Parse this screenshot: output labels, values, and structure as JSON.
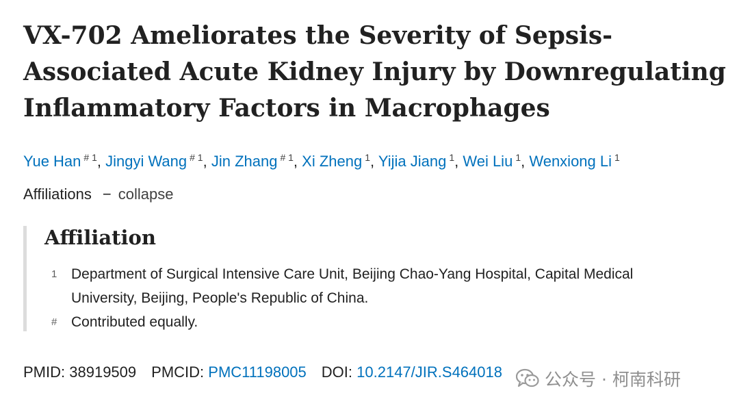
{
  "article": {
    "title_line1": "VX-702 Ameliorates the Severity of Sepsis-",
    "title_line2": "Associated Acute Kidney Injury by Downregulating",
    "title_line3": "Inflammatory Factors in Macrophages"
  },
  "authors": [
    {
      "name": "Yue Han",
      "marks": "# 1"
    },
    {
      "name": "Jingyi Wang",
      "marks": "# 1"
    },
    {
      "name": "Jin Zhang",
      "marks": "# 1"
    },
    {
      "name": "Xi Zheng",
      "marks": "1"
    },
    {
      "name": "Yijia Jiang",
      "marks": "1"
    },
    {
      "name": "Wei Liu",
      "marks": "1"
    },
    {
      "name": "Wenxiong Li",
      "marks": "1"
    }
  ],
  "affiliations_toggle": {
    "label": "Affiliations",
    "dash": "−",
    "action": "collapse"
  },
  "affiliation_box": {
    "heading": "Affiliation",
    "items": [
      {
        "marker": "1",
        "line1": "Department of Surgical Intensive Care Unit, Beijing Chao-Yang Hospital, Capital Medical",
        "line2": "University, Beijing, People's Republic of China."
      },
      {
        "marker": "#",
        "line1": "Contributed equally."
      }
    ]
  },
  "identifiers": {
    "pmid_label": "PMID:",
    "pmid_value": "38919509",
    "pmcid_label": "PMCID:",
    "pmcid_value": "PMC11198005",
    "doi_label": "DOI:",
    "doi_value": "10.2147/JIR.S464018"
  },
  "watermark": {
    "text": "公众号 · 柯南科研",
    "icon": "wechat-icon"
  },
  "colors": {
    "link": "#0071bc",
    "text": "#212121",
    "watermark": "#8f8f8f",
    "border": "#dcdcdc"
  }
}
